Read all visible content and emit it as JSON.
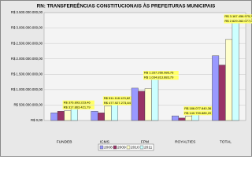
{
  "chart_data": {
    "type": "bar",
    "title": "RN: TRANSFEREÊNCIAS CONSTITUCIONAIS ÀS PREFEITURAS MUNICIPAIS",
    "categories": [
      "FUNDEB",
      "ICMS",
      "FPM",
      "ROYALTIES",
      "TOTAL"
    ],
    "series": [
      {
        "name": "2008",
        "color": "#9999ff",
        "values": [
          250000000,
          300000000,
          1050000000,
          150000000,
          2100000000
        ]
      },
      {
        "name": "2009",
        "color": "#993366",
        "values": [
          300000000,
          250000000,
          950000000,
          80000000,
          1800000000
        ]
      },
      {
        "name": "2010",
        "color": "#ffffcc",
        "values": [
          317863421.79,
          477927273.84,
          1034813883.79,
          140739889.2,
          2629262077.04
        ],
        "value_labels": [
          "R$ 317.863.421,79",
          "R$ 477.927.273,84",
          "R$ 1.034.813.883,79",
          "R$ 140.739.889,20",
          "R$ 2.629.262.077,04"
        ]
      },
      {
        "name": "2011",
        "color": "#ccffff",
        "values": [
          376893223.46,
          511118123.82,
          1337266986.76,
          186077840.36,
          3167456975.38
        ],
        "value_labels": [
          "R$ 376.893.223,46",
          "R$ 511.118.123,82",
          "R$ 1.337.266.986,76",
          "R$ 186.077.840,36",
          "R$ 3.167.456.975,38"
        ]
      }
    ],
    "ylim": [
      0,
      3500000000
    ],
    "yticks": [
      {
        "value": 0,
        "label": "R$ 0,00"
      },
      {
        "value": 500000000,
        "label": "R$ 500.000.000,00"
      },
      {
        "value": 1000000000,
        "label": "R$ 1.000.000.000,00"
      },
      {
        "value": 1500000000,
        "label": "R$ 1.500.000.000,00"
      },
      {
        "value": 2000000000,
        "label": "R$ 2.000.000.000,00"
      },
      {
        "value": 2500000000,
        "label": "R$ 2.500.000.000,00"
      },
      {
        "value": 3000000000,
        "label": "R$ 3.000.000.000,00"
      },
      {
        "value": 3500000000,
        "label": "R$ 3.500.000.000,00"
      }
    ],
    "grid": true,
    "legend": "bottom"
  }
}
